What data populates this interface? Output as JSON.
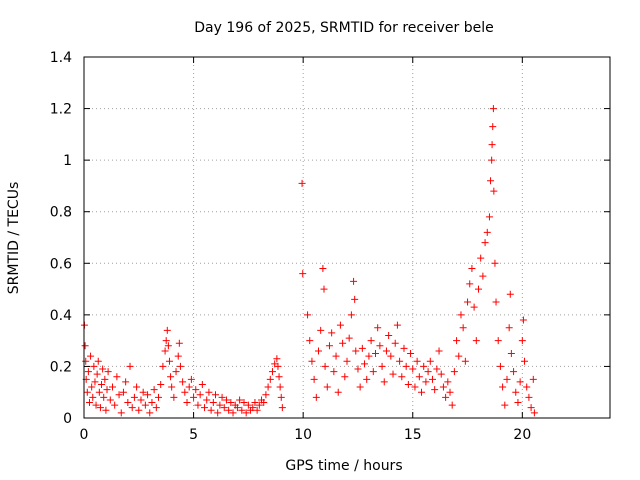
{
  "chart_data": {
    "type": "scatter",
    "title": "Day 196 of 2025, SRMTID for receiver bele",
    "xlabel": "GPS time / hours",
    "ylabel": "SRMTID / TECUs",
    "xlim": [
      0,
      24
    ],
    "ylim": [
      0,
      1.4
    ],
    "xticks": [
      0,
      5,
      10,
      15,
      20
    ],
    "xtick_labels": [
      "0",
      "5",
      "10",
      "15",
      "20"
    ],
    "yticks": [
      0,
      0.2,
      0.4,
      0.6,
      0.8,
      1.0,
      1.2,
      1.4
    ],
    "ytick_labels": [
      "0",
      "0.2",
      "0.4",
      "0.6",
      "0.8",
      "1",
      "1.2",
      "1.4"
    ],
    "grid": true,
    "marker": "+",
    "color": "#ff0000",
    "series": [
      {
        "name": "SRMTID",
        "points": [
          [
            0.02,
            0.36
          ],
          [
            0.05,
            0.28
          ],
          [
            0.08,
            0.22
          ],
          [
            0.1,
            0.15
          ],
          [
            0.15,
            0.1
          ],
          [
            0.2,
            0.18
          ],
          [
            0.25,
            0.06
          ],
          [
            0.3,
            0.24
          ],
          [
            0.35,
            0.12
          ],
          [
            0.4,
            0.08
          ],
          [
            0.45,
            0.2
          ],
          [
            0.5,
            0.14
          ],
          [
            0.55,
            0.05
          ],
          [
            0.6,
            0.17
          ],
          [
            0.65,
            0.22
          ],
          [
            0.7,
            0.1
          ],
          [
            0.75,
            0.04
          ],
          [
            0.8,
            0.13
          ],
          [
            0.85,
            0.19
          ],
          [
            0.9,
            0.08
          ],
          [
            0.95,
            0.15
          ],
          [
            1.0,
            0.03
          ],
          [
            1.05,
            0.11
          ],
          [
            1.1,
            0.18
          ],
          [
            1.2,
            0.07
          ],
          [
            1.3,
            0.12
          ],
          [
            1.4,
            0.05
          ],
          [
            1.5,
            0.16
          ],
          [
            1.6,
            0.09
          ],
          [
            1.7,
            0.02
          ],
          [
            1.8,
            0.1
          ],
          [
            1.9,
            0.14
          ],
          [
            2.0,
            0.06
          ],
          [
            2.1,
            0.2
          ],
          [
            2.2,
            0.04
          ],
          [
            2.3,
            0.08
          ],
          [
            2.4,
            0.12
          ],
          [
            2.5,
            0.03
          ],
          [
            2.6,
            0.07
          ],
          [
            2.7,
            0.1
          ],
          [
            2.8,
            0.05
          ],
          [
            2.9,
            0.09
          ],
          [
            3.0,
            0.02
          ],
          [
            3.1,
            0.06
          ],
          [
            3.2,
            0.11
          ],
          [
            3.3,
            0.04
          ],
          [
            3.4,
            0.08
          ],
          [
            3.5,
            0.13
          ],
          [
            3.6,
            0.2
          ],
          [
            3.7,
            0.26
          ],
          [
            3.75,
            0.3
          ],
          [
            3.8,
            0.34
          ],
          [
            3.85,
            0.28
          ],
          [
            3.9,
            0.22
          ],
          [
            3.95,
            0.16
          ],
          [
            4.0,
            0.12
          ],
          [
            4.1,
            0.08
          ],
          [
            4.2,
            0.18
          ],
          [
            4.3,
            0.24
          ],
          [
            4.35,
            0.29
          ],
          [
            4.4,
            0.2
          ],
          [
            4.5,
            0.14
          ],
          [
            4.6,
            0.1
          ],
          [
            4.7,
            0.06
          ],
          [
            4.8,
            0.12
          ],
          [
            4.9,
            0.15
          ],
          [
            5.0,
            0.08
          ],
          [
            5.1,
            0.11
          ],
          [
            5.2,
            0.05
          ],
          [
            5.3,
            0.09
          ],
          [
            5.4,
            0.13
          ],
          [
            5.5,
            0.04
          ],
          [
            5.6,
            0.07
          ],
          [
            5.7,
            0.1
          ],
          [
            5.8,
            0.03
          ],
          [
            5.9,
            0.06
          ],
          [
            6.0,
            0.09
          ],
          [
            6.1,
            0.02
          ],
          [
            6.2,
            0.05
          ],
          [
            6.3,
            0.08
          ],
          [
            6.4,
            0.04
          ],
          [
            6.5,
            0.07
          ],
          [
            6.6,
            0.03
          ],
          [
            6.7,
            0.06
          ],
          [
            6.8,
            0.02
          ],
          [
            6.9,
            0.05
          ],
          [
            7.0,
            0.04
          ],
          [
            7.1,
            0.07
          ],
          [
            7.2,
            0.03
          ],
          [
            7.3,
            0.06
          ],
          [
            7.4,
            0.02
          ],
          [
            7.5,
            0.05
          ],
          [
            7.6,
            0.03
          ],
          [
            7.7,
            0.04
          ],
          [
            7.8,
            0.06
          ],
          [
            7.9,
            0.03
          ],
          [
            8.0,
            0.05
          ],
          [
            8.1,
            0.07
          ],
          [
            8.2,
            0.06
          ],
          [
            8.3,
            0.09
          ],
          [
            8.4,
            0.12
          ],
          [
            8.5,
            0.15
          ],
          [
            8.6,
            0.18
          ],
          [
            8.7,
            0.21
          ],
          [
            8.8,
            0.23
          ],
          [
            8.85,
            0.2
          ],
          [
            8.9,
            0.16
          ],
          [
            8.95,
            0.12
          ],
          [
            9.0,
            0.08
          ],
          [
            9.05,
            0.04
          ],
          [
            9.95,
            0.91
          ],
          [
            9.98,
            0.56
          ],
          [
            10.2,
            0.4
          ],
          [
            10.3,
            0.3
          ],
          [
            10.4,
            0.22
          ],
          [
            10.5,
            0.15
          ],
          [
            10.6,
            0.08
          ],
          [
            10.7,
            0.26
          ],
          [
            10.8,
            0.34
          ],
          [
            10.9,
            0.58
          ],
          [
            10.95,
            0.5
          ],
          [
            11.0,
            0.2
          ],
          [
            11.1,
            0.12
          ],
          [
            11.2,
            0.28
          ],
          [
            11.3,
            0.33
          ],
          [
            11.4,
            0.18
          ],
          [
            11.5,
            0.24
          ],
          [
            11.6,
            0.1
          ],
          [
            11.7,
            0.36
          ],
          [
            11.8,
            0.29
          ],
          [
            11.9,
            0.16
          ],
          [
            12.0,
            0.22
          ],
          [
            12.1,
            0.31
          ],
          [
            12.2,
            0.4
          ],
          [
            12.3,
            0.53
          ],
          [
            12.35,
            0.46
          ],
          [
            12.4,
            0.26
          ],
          [
            12.5,
            0.19
          ],
          [
            12.6,
            0.12
          ],
          [
            12.7,
            0.27
          ],
          [
            12.8,
            0.21
          ],
          [
            12.9,
            0.15
          ],
          [
            13.0,
            0.24
          ],
          [
            13.1,
            0.3
          ],
          [
            13.2,
            0.18
          ],
          [
            13.3,
            0.25
          ],
          [
            13.4,
            0.35
          ],
          [
            13.5,
            0.28
          ],
          [
            13.6,
            0.2
          ],
          [
            13.7,
            0.14
          ],
          [
            13.8,
            0.26
          ],
          [
            13.9,
            0.32
          ],
          [
            14.0,
            0.24
          ],
          [
            14.1,
            0.17
          ],
          [
            14.2,
            0.29
          ],
          [
            14.3,
            0.36
          ],
          [
            14.4,
            0.22
          ],
          [
            14.5,
            0.16
          ],
          [
            14.6,
            0.27
          ],
          [
            14.7,
            0.2
          ],
          [
            14.8,
            0.13
          ],
          [
            14.9,
            0.25
          ],
          [
            15.0,
            0.19
          ],
          [
            15.1,
            0.12
          ],
          [
            15.2,
            0.22
          ],
          [
            15.3,
            0.16
          ],
          [
            15.4,
            0.1
          ],
          [
            15.5,
            0.2
          ],
          [
            15.6,
            0.14
          ],
          [
            15.7,
            0.18
          ],
          [
            15.8,
            0.22
          ],
          [
            15.9,
            0.15
          ],
          [
            16.0,
            0.11
          ],
          [
            16.1,
            0.19
          ],
          [
            16.2,
            0.26
          ],
          [
            16.3,
            0.17
          ],
          [
            16.4,
            0.12
          ],
          [
            16.5,
            0.08
          ],
          [
            16.6,
            0.14
          ],
          [
            16.7,
            0.1
          ],
          [
            16.8,
            0.05
          ],
          [
            16.9,
            0.18
          ],
          [
            17.0,
            0.3
          ],
          [
            17.1,
            0.24
          ],
          [
            17.2,
            0.4
          ],
          [
            17.3,
            0.35
          ],
          [
            17.4,
            0.22
          ],
          [
            17.5,
            0.45
          ],
          [
            17.6,
            0.52
          ],
          [
            17.7,
            0.58
          ],
          [
            17.8,
            0.43
          ],
          [
            17.9,
            0.3
          ],
          [
            18.0,
            0.5
          ],
          [
            18.1,
            0.62
          ],
          [
            18.2,
            0.55
          ],
          [
            18.3,
            0.68
          ],
          [
            18.4,
            0.72
          ],
          [
            18.5,
            0.78
          ],
          [
            18.55,
            0.92
          ],
          [
            18.6,
            1.0
          ],
          [
            18.62,
            1.06
          ],
          [
            18.65,
            1.13
          ],
          [
            18.68,
            1.2
          ],
          [
            18.7,
            0.88
          ],
          [
            18.75,
            0.6
          ],
          [
            18.8,
            0.45
          ],
          [
            18.9,
            0.3
          ],
          [
            19.0,
            0.2
          ],
          [
            19.1,
            0.12
          ],
          [
            19.2,
            0.05
          ],
          [
            19.3,
            0.15
          ],
          [
            19.4,
            0.35
          ],
          [
            19.45,
            0.48
          ],
          [
            19.5,
            0.25
          ],
          [
            19.6,
            0.18
          ],
          [
            19.7,
            0.1
          ],
          [
            19.8,
            0.06
          ],
          [
            19.9,
            0.14
          ],
          [
            20.0,
            0.3
          ],
          [
            20.05,
            0.38
          ],
          [
            20.1,
            0.22
          ],
          [
            20.2,
            0.12
          ],
          [
            20.3,
            0.08
          ],
          [
            20.4,
            0.04
          ],
          [
            20.5,
            0.15
          ],
          [
            20.55,
            0.02
          ]
        ]
      }
    ]
  }
}
